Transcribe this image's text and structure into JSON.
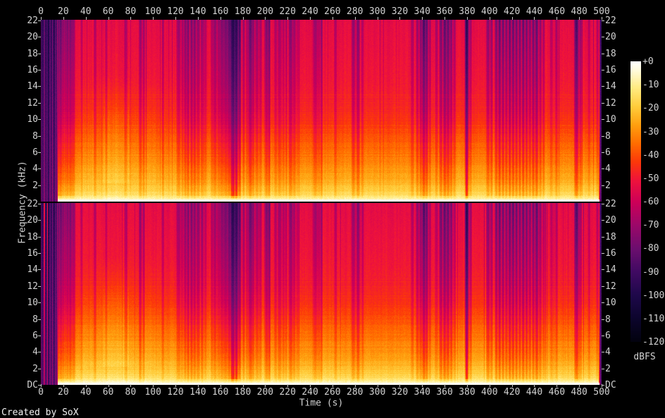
{
  "figure": {
    "xlabel": "Time (s)",
    "ylabel": "Frequency (kHz)",
    "colorbar_label": "dBFS",
    "credit": "Created by SoX"
  },
  "layout_colors": {
    "background": "#000000",
    "axis_text": "#d2d2d2",
    "tick": "#c8c8c8",
    "credit_text": "#f2f2f2"
  },
  "chart_data": {
    "type": "heatmap",
    "subtype": "stereo-audio-spectrogram",
    "title": "",
    "xlabel": "Time (s)",
    "ylabel": "Frequency (kHz)",
    "channels": 2,
    "x_range_s": [
      0,
      500
    ],
    "x_ticks": [
      0,
      20,
      40,
      60,
      80,
      100,
      120,
      140,
      160,
      180,
      200,
      220,
      240,
      260,
      280,
      300,
      320,
      340,
      360,
      380,
      400,
      420,
      440,
      460,
      480,
      500
    ],
    "freq_ticks_khz": [
      "22",
      "20",
      "18",
      "16",
      "14",
      "12",
      "10",
      "8",
      "6",
      "4",
      "2"
    ],
    "dc_label": "DC",
    "colorbar": {
      "label": "dBFS",
      "range_db": [
        0,
        -120
      ],
      "ticks": [
        "+0",
        "-10",
        "-20",
        "-30",
        "-40",
        "-50",
        "-60",
        "-70",
        "-80",
        "-90",
        "-100",
        "-110",
        "-120"
      ]
    },
    "palette_db_rgb": [
      [
        0,
        255,
        255,
        255
      ],
      [
        -4,
        255,
        250,
        215
      ],
      [
        -11,
        255,
        235,
        130
      ],
      [
        -19,
        255,
        205,
        60
      ],
      [
        -27,
        255,
        160,
        15
      ],
      [
        -35,
        255,
        108,
        0
      ],
      [
        -43,
        252,
        55,
        10
      ],
      [
        -51,
        238,
        18,
        60
      ],
      [
        -60,
        205,
        0,
        88
      ],
      [
        -70,
        155,
        8,
        105
      ],
      [
        -80,
        108,
        14,
        110
      ],
      [
        -90,
        64,
        10,
        98
      ],
      [
        -100,
        30,
        8,
        74
      ],
      [
        -110,
        12,
        5,
        44
      ],
      [
        -120,
        2,
        2,
        14
      ]
    ],
    "freq_profile_db": [
      [
        0,
        -54
      ],
      [
        0.18,
        -52
      ],
      [
        0.34,
        -50
      ],
      [
        0.46,
        -47.5
      ],
      [
        0.56,
        -44
      ],
      [
        0.63,
        -40
      ],
      [
        0.7,
        -36
      ],
      [
        0.77,
        -32
      ],
      [
        0.84,
        -28
      ],
      [
        0.89,
        -24
      ],
      [
        0.93,
        -20
      ],
      [
        0.965,
        -15
      ],
      [
        0.985,
        -8
      ],
      [
        1,
        -2
      ]
    ],
    "time_boosts": [
      [
        35,
        55,
        2.5
      ],
      [
        55,
        78,
        6
      ],
      [
        78,
        102,
        2.5
      ],
      [
        102,
        130,
        1.2
      ]
    ],
    "stripes_s": [
      [
        0.7,
        0.8,
        46,
        1
      ],
      [
        2,
        1.2,
        40,
        1
      ],
      [
        4.2,
        1.1,
        44,
        1
      ],
      [
        6.5,
        1.3,
        46,
        1
      ],
      [
        9,
        1.2,
        42,
        1
      ],
      [
        11.5,
        1.3,
        44,
        1
      ],
      [
        13.5,
        1,
        38,
        1
      ],
      [
        15.5,
        0.9,
        28,
        0
      ],
      [
        17.5,
        0.9,
        30,
        0
      ],
      [
        19.5,
        0.9,
        22,
        0
      ],
      [
        21.5,
        1,
        20,
        0
      ],
      [
        23.5,
        1.1,
        24,
        0
      ],
      [
        26,
        1.2,
        24,
        0
      ],
      [
        28.5,
        1.3,
        20,
        0
      ],
      [
        36,
        0.7,
        12,
        0
      ],
      [
        48,
        0.8,
        13,
        0
      ],
      [
        58,
        0.7,
        12,
        0
      ],
      [
        75.5,
        1,
        15,
        0
      ],
      [
        88.5,
        0.9,
        20,
        0
      ],
      [
        91.5,
        0.7,
        17,
        0
      ],
      [
        108.5,
        0.7,
        15,
        0
      ],
      [
        122.5,
        1.3,
        19,
        0
      ],
      [
        126,
        0.8,
        14,
        0
      ],
      [
        128.5,
        0.9,
        21,
        0
      ],
      [
        131,
        0.9,
        23,
        0
      ],
      [
        134,
        0.9,
        25,
        0
      ],
      [
        136.8,
        0.9,
        23,
        0
      ],
      [
        140,
        1.2,
        21,
        0
      ],
      [
        143.5,
        1,
        18,
        0
      ],
      [
        146.5,
        0.8,
        14,
        0
      ],
      [
        152.5,
        1,
        14,
        0
      ],
      [
        155,
        1.2,
        19,
        0
      ],
      [
        158.5,
        1.2,
        17,
        0
      ],
      [
        161.5,
        1.6,
        23,
        0
      ],
      [
        164.5,
        1.6,
        26,
        0
      ],
      [
        168,
        1.6,
        32,
        0
      ],
      [
        171,
        2,
        45,
        0
      ],
      [
        174,
        1.6,
        43,
        0
      ],
      [
        176.8,
        1,
        36,
        0
      ],
      [
        180.5,
        0.8,
        18,
        0
      ],
      [
        183.5,
        0.8,
        14,
        0
      ],
      [
        186.5,
        1.4,
        29,
        0
      ],
      [
        189,
        0.9,
        23,
        0
      ],
      [
        192.5,
        1.2,
        17,
        0
      ],
      [
        195.5,
        0.9,
        15,
        0
      ],
      [
        201,
        1.3,
        23,
        0
      ],
      [
        203.3,
        0.8,
        28,
        0
      ],
      [
        209,
        0.9,
        14,
        0
      ],
      [
        212.5,
        1.3,
        17,
        0
      ],
      [
        216,
        0.8,
        13,
        0
      ],
      [
        218.5,
        0.7,
        15,
        0
      ],
      [
        222.5,
        1.3,
        23,
        0
      ],
      [
        225.5,
        0.9,
        17,
        0
      ],
      [
        229,
        1.2,
        12,
        0
      ],
      [
        244.5,
        1.6,
        17,
        0
      ],
      [
        247.5,
        0.9,
        13,
        0
      ],
      [
        250,
        0.7,
        19,
        0
      ],
      [
        262.5,
        0.9,
        13,
        0
      ],
      [
        278.5,
        1.3,
        19,
        0
      ],
      [
        282.5,
        1.1,
        23,
        0
      ],
      [
        286.5,
        0.8,
        13,
        0
      ],
      [
        331,
        0.9,
        14,
        0
      ],
      [
        335.5,
        0.9,
        17,
        0
      ],
      [
        338.5,
        0.9,
        22,
        0
      ],
      [
        341.2,
        1.1,
        35,
        0
      ],
      [
        343.8,
        0.9,
        30,
        0
      ],
      [
        346.5,
        0.8,
        16,
        0
      ],
      [
        352.5,
        0.9,
        14,
        0
      ],
      [
        356.5,
        1.1,
        26,
        0
      ],
      [
        359.8,
        1.1,
        31,
        0
      ],
      [
        362.8,
        1.1,
        29,
        0
      ],
      [
        365.5,
        0.9,
        24,
        0
      ],
      [
        368.5,
        0.8,
        15,
        0
      ],
      [
        379.5,
        1.2,
        44,
        0
      ],
      [
        382.8,
        0.8,
        17,
        0
      ],
      [
        398.5,
        1.1,
        22,
        0
      ],
      [
        401.5,
        0.9,
        18,
        0
      ],
      [
        405.8,
        0.9,
        26,
        0
      ],
      [
        408.8,
        0.9,
        31,
        0
      ],
      [
        411.8,
        0.9,
        27,
        0
      ],
      [
        414.8,
        0.9,
        24,
        0
      ],
      [
        417.8,
        0.9,
        29,
        0
      ],
      [
        420.8,
        0.9,
        31,
        0
      ],
      [
        423.8,
        0.9,
        26,
        0
      ],
      [
        426.8,
        0.9,
        24,
        0
      ],
      [
        429.8,
        0.9,
        29,
        0
      ],
      [
        432.8,
        0.9,
        27,
        0
      ],
      [
        435.8,
        0.9,
        24,
        0
      ],
      [
        438.8,
        0.9,
        26,
        0
      ],
      [
        441.8,
        1.1,
        29,
        0
      ],
      [
        445,
        0.9,
        19,
        0
      ],
      [
        448,
        0.8,
        13,
        0
      ],
      [
        455,
        0.9,
        12,
        0
      ],
      [
        459.5,
        0.9,
        14,
        0
      ],
      [
        477.3,
        1.4,
        35,
        0
      ],
      [
        480.8,
        0.9,
        17,
        0
      ],
      [
        488.5,
        0.8,
        12,
        0
      ],
      [
        496,
        0.8,
        12,
        0
      ],
      [
        499.3,
        1.2,
        42,
        1
      ]
    ],
    "bright_bars_ch2_s": [
      2.8,
      5.6
    ]
  }
}
